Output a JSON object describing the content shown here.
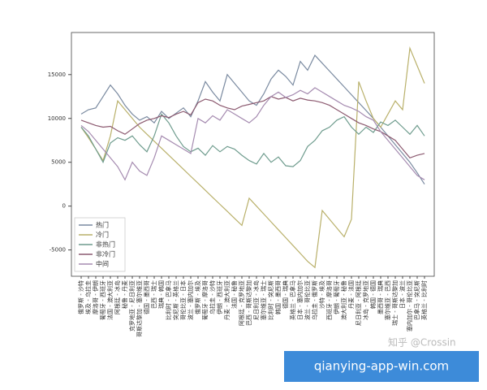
{
  "chart_data": {
    "type": "line",
    "categories": [
      "俄罗斯 - 沙特",
      "埃及 - 乌拉圭",
      "摩洛哥 - 伊朗",
      "葡萄牙 - 西班牙",
      "法国 - 澳大利亚",
      "阿根廷 - 冰岛",
      "秘鲁 - 丹麦",
      "克罗地亚 - 尼日利亚",
      "哥斯达黎加 - 塞尔维亚",
      "德国 - 墨西哥",
      "巴西 - 瑞士",
      "瑞典 - 韩国",
      "比利时 - 巴拿马",
      "突尼斯 - 英格兰",
      "哥伦比亚 - 日本",
      "波兰 - 塞内加尔",
      "俄罗斯 - 埃及",
      "葡萄牙 - 摩洛哥",
      "乌拉圭 - 沙特",
      "伊朗 - 西班牙",
      "丹麦 - 澳大利亚",
      "法国 - 秘鲁",
      "阿根廷 - 克罗地亚",
      "巴西 - 哥斯达黎加",
      "尼日利亚 - 冰岛",
      "塞尔维亚 - 瑞士",
      "比利时 - 突尼斯",
      "韩国 - 墨西哥",
      "德国 - 瑞典",
      "英格兰 - 巴拿马",
      "日本 - 塞内加尔",
      "波兰 - 哥伦比亚",
      "乌拉圭 - 俄罗斯",
      "沙特 - 埃及",
      "西班牙 - 摩洛哥",
      "伊朗 - 葡萄牙",
      "澳大利亚 - 秘鲁",
      "丹麦 - 法国",
      "尼日利亚 - 阿根廷",
      "冰岛 - 克罗地亚",
      "韩国 - 德国",
      "墨西哥 - 瑞典",
      "塞尔维亚 - 巴西",
      "瑞士 - 哥斯达黎加",
      "日本 - 波兰",
      "塞内加尔 - 哥伦比亚",
      "巴拿马 - 突尼斯",
      "英格兰 - 比利时"
    ],
    "series": [
      {
        "name": "热门",
        "color": "#7a8aa0",
        "values": [
          10500,
          11000,
          11200,
          12500,
          13800,
          12800,
          11500,
          10500,
          9800,
          10200,
          9500,
          10800,
          10000,
          10600,
          11200,
          10200,
          12000,
          14200,
          13000,
          12000,
          15000,
          14000,
          13000,
          12000,
          11500,
          12800,
          14500,
          15500,
          14800,
          13800,
          16500,
          15500,
          17200,
          16300,
          15400,
          14500,
          13600,
          12700,
          11800,
          10900,
          10000,
          9000,
          8000,
          7000,
          6000,
          5000,
          3800,
          2500
        ]
      },
      {
        "name": "冷门",
        "color": "#b9b06a",
        "values": [
          9000,
          7800,
          6500,
          5200,
          8000,
          12000,
          11000,
          10000,
          9000,
          8200,
          7400,
          6600,
          5800,
          5000,
          4200,
          3400,
          2600,
          1800,
          1000,
          200,
          -600,
          -1400,
          -2200,
          900,
          0,
          -900,
          -1800,
          -2700,
          -3600,
          -4500,
          -5400,
          -6300,
          -7000,
          -500,
          -1500,
          -2500,
          -3500,
          -1500,
          14200,
          12000,
          10000,
          9000,
          10500,
          12000,
          11000,
          18000,
          16000,
          14000
        ]
      },
      {
        "name": "非热门",
        "color": "#6f9c8e",
        "values": [
          9000,
          8000,
          6500,
          5000,
          7200,
          7800,
          7500,
          8000,
          7000,
          6200,
          8000,
          10500,
          9500,
          8000,
          6800,
          6200,
          6600,
          5800,
          6900,
          6200,
          6800,
          6500,
          5800,
          5200,
          4800,
          6000,
          5000,
          5600,
          4600,
          4500,
          5200,
          6800,
          7500,
          8600,
          9000,
          9800,
          10200,
          9000,
          8200,
          9000,
          8400,
          9600,
          9200,
          9800,
          9000,
          8200,
          9200,
          8000
        ]
      },
      {
        "name": "非冷门",
        "color": "#8c5a70",
        "values": [
          9800,
          9500,
          9200,
          9000,
          9100,
          8600,
          8200,
          8800,
          9400,
          9800,
          10000,
          10300,
          10100,
          10500,
          10800,
          10400,
          11800,
          12200,
          12000,
          11500,
          11200,
          11000,
          11400,
          11600,
          11800,
          12000,
          12500,
          12200,
          12400,
          12000,
          12300,
          12100,
          12000,
          11800,
          11500,
          11000,
          10500,
          10000,
          9500,
          9200,
          8800,
          8500,
          8000,
          7500,
          6500,
          5500,
          5800,
          6000
        ]
      },
      {
        "name": "中间",
        "color": "#a58bb0",
        "values": [
          9200,
          8500,
          7500,
          6500,
          5500,
          4500,
          3000,
          5000,
          4000,
          3500,
          5500,
          8000,
          7500,
          7000,
          6500,
          6000,
          10000,
          9500,
          10300,
          9800,
          11000,
          10500,
          10000,
          9500,
          10200,
          11500,
          12500,
          13000,
          12400,
          12700,
          13200,
          12800,
          13500,
          13000,
          12500,
          12000,
          11500,
          11200,
          10800,
          10200,
          9800,
          8500,
          7500,
          6500,
          5500,
          4500,
          3500,
          3000
        ]
      }
    ],
    "ylim": [
      -8000,
      19800
    ],
    "yticks": [
      -5000,
      0,
      5000,
      10000,
      15000
    ],
    "legend": "lower left"
  },
  "watermark": "知乎 @Crossin",
  "banner": "qianying-app-win.com"
}
